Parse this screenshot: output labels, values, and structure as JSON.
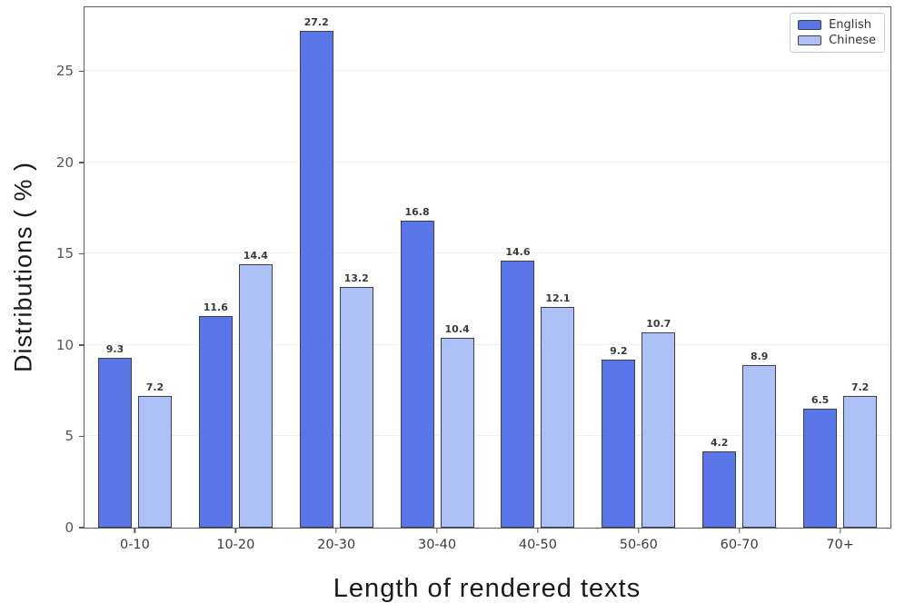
{
  "chart_data": {
    "type": "bar",
    "title": "",
    "xlabel": "Length of rendered texts",
    "ylabel": "Distributions ( % )",
    "categories": [
      "0-10",
      "10-20",
      "20-30",
      "30-40",
      "40-50",
      "50-60",
      "60-70",
      "70+"
    ],
    "series": [
      {
        "name": "English",
        "color": "#5b76e8",
        "values": [
          9.3,
          11.6,
          27.2,
          16.8,
          14.6,
          9.2,
          4.2,
          6.5
        ]
      },
      {
        "name": "Chinese",
        "color": "#aec1f7",
        "values": [
          7.2,
          14.4,
          13.2,
          10.4,
          12.1,
          10.7,
          8.9,
          7.2
        ]
      }
    ],
    "bar_edge_color": "#3b3f54",
    "value_labels_shown": true,
    "ylim": [
      0,
      28.5
    ],
    "yticks": [
      0,
      5,
      10,
      15,
      20,
      25
    ],
    "grid": "horizontal-dotted",
    "legend_position": "top-right"
  }
}
